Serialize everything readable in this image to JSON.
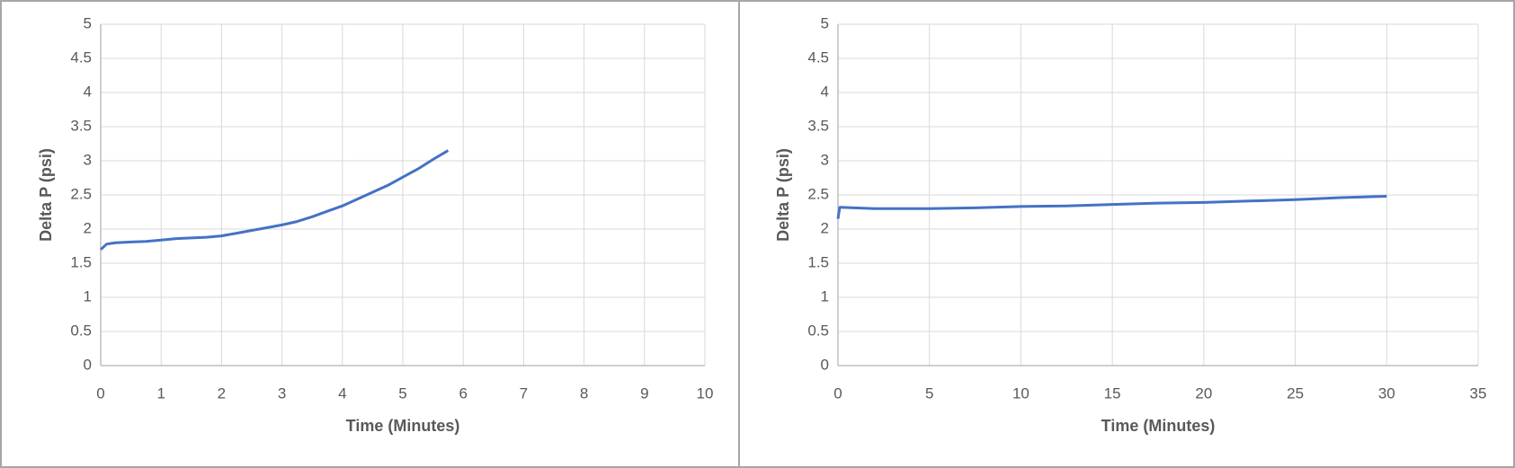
{
  "chart_data": [
    {
      "type": "line",
      "xlabel": "Time (Minutes)",
      "ylabel": "Delta P (psi)",
      "x": [
        0,
        0.1,
        0.25,
        0.5,
        0.75,
        1,
        1.25,
        1.5,
        1.75,
        2,
        2.25,
        2.5,
        2.75,
        3,
        3.25,
        3.5,
        3.75,
        4,
        4.25,
        4.5,
        4.75,
        5,
        5.25,
        5.5,
        5.75
      ],
      "values": [
        1.7,
        1.78,
        1.8,
        1.81,
        1.82,
        1.84,
        1.86,
        1.87,
        1.88,
        1.9,
        1.94,
        1.98,
        2.02,
        2.06,
        2.11,
        2.18,
        2.26,
        2.34,
        2.44,
        2.54,
        2.64,
        2.76,
        2.88,
        3.02,
        3.15
      ],
      "color": "#4472c4",
      "grid": true,
      "xlim": [
        0,
        10
      ],
      "xticks": [
        0,
        1,
        2,
        3,
        4,
        5,
        6,
        7,
        8,
        9,
        10
      ],
      "ylim": [
        0,
        5
      ],
      "yticks": [
        0,
        0.5,
        1,
        1.5,
        2,
        2.5,
        3,
        3.5,
        4,
        4.5,
        5
      ]
    },
    {
      "type": "line",
      "xlabel": "Time (Minutes)",
      "ylabel": "Delta P (psi)",
      "x": [
        0,
        0.1,
        2,
        5,
        7.5,
        10,
        12.5,
        15,
        17.5,
        20,
        22.5,
        25,
        27.5,
        30
      ],
      "values": [
        2.15,
        2.32,
        2.3,
        2.3,
        2.31,
        2.33,
        2.34,
        2.36,
        2.38,
        2.39,
        2.41,
        2.43,
        2.46,
        2.48
      ],
      "color": "#4472c4",
      "grid": true,
      "xlim": [
        0,
        35
      ],
      "xticks": [
        0,
        5,
        10,
        15,
        20,
        25,
        30,
        35
      ],
      "ylim": [
        0,
        5
      ],
      "yticks": [
        0,
        0.5,
        1,
        1.5,
        2,
        2.5,
        3,
        3.5,
        4,
        4.5,
        5
      ]
    }
  ]
}
